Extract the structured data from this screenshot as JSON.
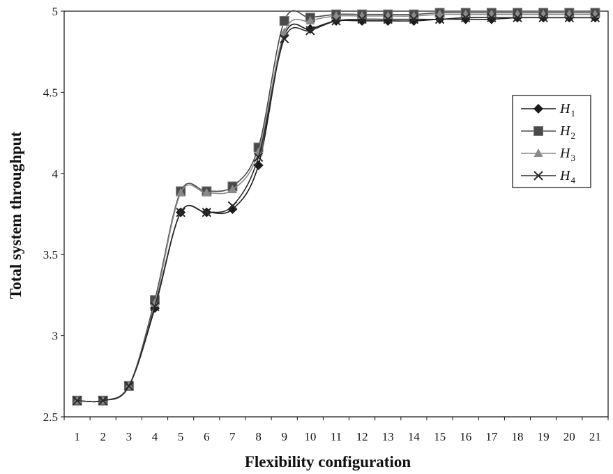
{
  "chart_data": {
    "type": "line",
    "title": "",
    "xlabel": "Flexibility configuration",
    "ylabel": "Total system throughput",
    "categories": [
      "1",
      "2",
      "3",
      "4",
      "5",
      "6",
      "7",
      "8",
      "9",
      "10",
      "11",
      "12",
      "13",
      "14",
      "15",
      "16",
      "17",
      "18",
      "19",
      "20",
      "21"
    ],
    "ylim": [
      2.5,
      5
    ],
    "yticks": [
      "2.5",
      "3",
      "3.5",
      "4",
      "4.5",
      "5"
    ],
    "grid": false,
    "legend_position": "right",
    "series": [
      {
        "name": "H",
        "subscript": "1",
        "marker": "diamond",
        "color": "#1a1a1a",
        "values": [
          2.6,
          2.6,
          2.69,
          3.17,
          3.76,
          3.76,
          3.78,
          4.05,
          4.85,
          4.89,
          4.94,
          4.94,
          4.94,
          4.94,
          4.95,
          4.95,
          4.95,
          4.96,
          4.96,
          4.96,
          4.96
        ]
      },
      {
        "name": "H",
        "subscript": "2",
        "marker": "square",
        "color": "#4a4a4a",
        "values": [
          2.6,
          2.6,
          2.69,
          3.22,
          3.89,
          3.89,
          3.92,
          4.16,
          4.94,
          4.96,
          4.98,
          4.98,
          4.98,
          4.98,
          4.99,
          4.99,
          4.99,
          4.99,
          4.99,
          4.99,
          4.99
        ]
      },
      {
        "name": "H",
        "subscript": "3",
        "marker": "triangle",
        "color": "#8a8a8a",
        "values": [
          2.6,
          2.6,
          2.69,
          3.2,
          3.88,
          3.88,
          3.9,
          4.13,
          4.87,
          4.94,
          4.97,
          4.97,
          4.97,
          4.97,
          4.98,
          4.98,
          4.98,
          4.98,
          4.98,
          4.98,
          4.98
        ]
      },
      {
        "name": "H",
        "subscript": "4",
        "marker": "x",
        "color": "#2a2a2a",
        "values": [
          2.6,
          2.6,
          2.69,
          3.18,
          3.76,
          3.76,
          3.8,
          4.1,
          4.83,
          4.88,
          4.94,
          4.95,
          4.95,
          4.95,
          4.95,
          4.96,
          4.96,
          4.96,
          4.96,
          4.96,
          4.96
        ]
      }
    ]
  }
}
